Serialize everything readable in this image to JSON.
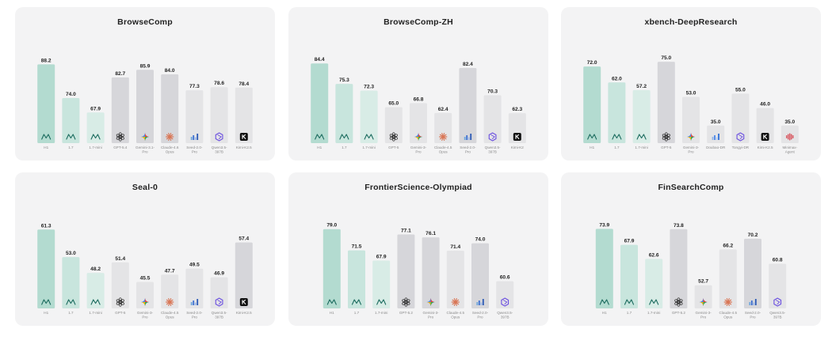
{
  "colors": {
    "teal_dark": "#b3dbd0",
    "teal_mid": "#c8e5dd",
    "teal_light": "#d8ece6",
    "gray_dark": "#d6d6da",
    "gray_light": "#e4e4e6",
    "logo_teal": "#1b6b5e"
  },
  "chart_data": [
    {
      "type": "bar",
      "title": "BrowseComp",
      "categories": [
        "H1",
        "1.7",
        "1.7-mini",
        "GPT-5.4",
        "Gemini-3.1-Pro",
        "Claude-4.6 Opus",
        "Seed-2.0-Pro",
        "Qwen3.5-397B",
        "Kimi-K2.5"
      ],
      "values": [
        88.2,
        74.0,
        67.9,
        82.7,
        85.9,
        84.0,
        77.3,
        78.6,
        78.4
      ],
      "value_labels": [
        "88.2",
        "74.0",
        "67.9",
        "82.7",
        "85.9",
        "84.0",
        "77.3",
        "78.6",
        "78.4"
      ],
      "icons": [
        "minimax-logo-icon",
        "minimax-logo-icon",
        "minimax-logo-icon",
        "openai-icon",
        "gemini-icon",
        "claude-icon",
        "seed-icon",
        "qwen-icon",
        "kimi-icon"
      ],
      "ylim": [
        55,
        92
      ]
    },
    {
      "type": "bar",
      "title": "BrowseComp-ZH",
      "categories": [
        "H1",
        "1.7",
        "1.7-mini",
        "GPT-5",
        "Gemini-3-Pro",
        "Claude-4.5 Opus",
        "Seed-2.0-Pro",
        "Qwen3.5-397B",
        "Kimi-K2"
      ],
      "values": [
        84.4,
        75.3,
        72.3,
        65.0,
        66.8,
        62.4,
        82.4,
        70.3,
        62.3
      ],
      "value_labels": [
        "84.4",
        "75.3",
        "72.3",
        "65.0",
        "66.8",
        "62.4",
        "82.4",
        "70.3",
        "62.3"
      ],
      "icons": [
        "minimax-logo-icon",
        "minimax-logo-icon",
        "minimax-logo-icon",
        "openai-icon",
        "gemini-icon",
        "claude-icon",
        "seed-icon",
        "qwen-icon",
        "kimi-icon"
      ],
      "ylim": [
        49,
        88
      ]
    },
    {
      "type": "bar",
      "title": "xbench-DeepResearch",
      "categories": [
        "H1",
        "1.7",
        "1.7-mini",
        "GPT-5",
        "Gemini-3-Pro",
        "Doubao-DR",
        "Tongyi-DR",
        "Kimi-K2.5",
        "Minimax-Agent"
      ],
      "values": [
        72.0,
        62.0,
        57.2,
        75.0,
        53.0,
        35.0,
        55.0,
        46.0,
        35.0
      ],
      "value_labels": [
        "72.0",
        "62.0",
        "57.2",
        "75.0",
        "53.0",
        "35.0",
        "55.0",
        "46.0",
        "35.0"
      ],
      "icons": [
        "minimax-logo-icon",
        "minimax-logo-icon",
        "minimax-logo-icon",
        "openai-icon",
        "gemini-icon",
        "doubao-icon",
        "qwen-icon",
        "kimi-icon",
        "minimax-agent-icon"
      ],
      "ylim": [
        24,
        79
      ]
    },
    {
      "type": "bar",
      "title": "Seal-0",
      "categories": [
        "H1",
        "1.7",
        "1.7-mini",
        "GPT-5",
        "Gemini-3-Pro",
        "Claude-4.5 Opus",
        "Seed-2.0-Pro",
        "Qwen3.5-397B",
        "Kimi-K2.5"
      ],
      "values": [
        61.3,
        53.0,
        48.2,
        51.4,
        45.5,
        47.7,
        49.5,
        46.9,
        57.4
      ],
      "value_labels": [
        "61.3",
        "53.0",
        "48.2",
        "51.4",
        "45.5",
        "47.7",
        "49.5",
        "46.9",
        "57.4"
      ],
      "icons": [
        "minimax-logo-icon",
        "minimax-logo-icon",
        "minimax-logo-icon",
        "openai-icon",
        "gemini-icon",
        "claude-icon",
        "seed-icon",
        "qwen-icon",
        "kimi-icon"
      ],
      "ylim": [
        37.5,
        64
      ]
    },
    {
      "type": "bar",
      "title": "FrontierScience-Olympiad",
      "categories": [
        "H1",
        "1.7",
        "1.7-mini",
        "GPT-5.2",
        "Gemini-3-Pro",
        "Claude-4.5 Opus",
        "Seed-2.0-Pro",
        "Qwen3.5-397B"
      ],
      "values": [
        79.0,
        71.5,
        67.9,
        77.1,
        76.1,
        71.4,
        74.0,
        60.6
      ],
      "value_labels": [
        "79.0",
        "71.5",
        "67.9",
        "77.1",
        "76.1",
        "71.4",
        "74.0",
        "60.6"
      ],
      "icons": [
        "minimax-logo-icon",
        "minimax-logo-icon",
        "minimax-logo-icon",
        "openai-icon",
        "gemini-icon",
        "claude-icon",
        "seed-icon",
        "qwen-icon"
      ],
      "ylim": [
        51,
        82
      ]
    },
    {
      "type": "bar",
      "title": "FinSearchComp",
      "categories": [
        "H1",
        "1.7",
        "1.7-mini",
        "GPT-5.2",
        "Gemini-3-Pro",
        "Claude-4.5 Opus",
        "Seed-2.0-Pro",
        "Qwen3.5-397B"
      ],
      "values": [
        73.9,
        67.9,
        62.6,
        73.8,
        52.7,
        66.2,
        70.2,
        60.8
      ],
      "value_labels": [
        "73.9",
        "67.9",
        "62.6",
        "73.8",
        "52.7",
        "66.2",
        "70.2",
        "60.8"
      ],
      "icons": [
        "minimax-logo-icon",
        "minimax-logo-icon",
        "minimax-logo-icon",
        "openai-icon",
        "gemini-icon",
        "claude-icon",
        "seed-icon",
        "qwen-icon"
      ],
      "ylim": [
        44,
        77
      ]
    }
  ]
}
